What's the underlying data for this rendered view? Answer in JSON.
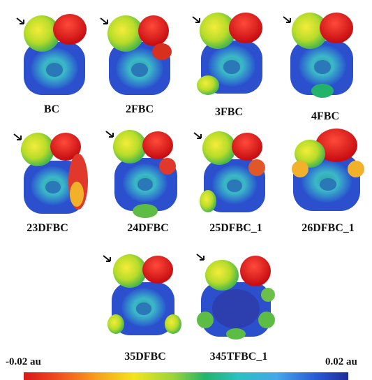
{
  "panels": [
    {
      "label": "BC"
    },
    {
      "label": "2FBC"
    },
    {
      "label": "3FBC"
    },
    {
      "label": "4FBC"
    },
    {
      "label": "23DFBC"
    },
    {
      "label": "24DFBC"
    },
    {
      "label": "25DFBC_1"
    },
    {
      "label": "26DFBC_1"
    },
    {
      "label": "35DFBC"
    },
    {
      "label": "345TFBC_1"
    }
  ],
  "scale": {
    "min_label": "-0.02 au",
    "max_label": "0.02 au",
    "colors": [
      "#d81818",
      "#f79c1e",
      "#f2e51c",
      "#22b36b",
      "#2cc0c0",
      "#43a7e8",
      "#1f2a9c"
    ]
  }
}
